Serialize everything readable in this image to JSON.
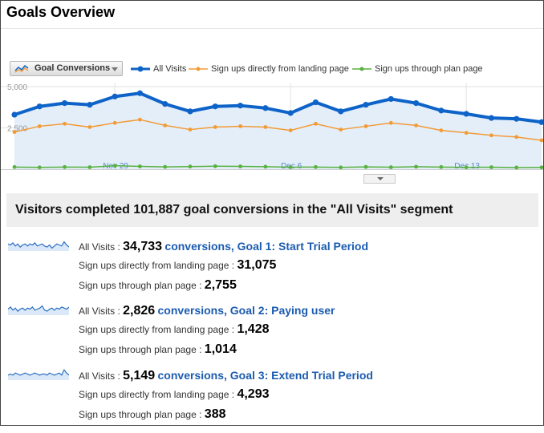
{
  "page": {
    "title": "Goals Overview"
  },
  "toolbar": {
    "metric_select": "Goal Conversions",
    "legend": [
      {
        "label": "All Visits",
        "color": "#0e63c8"
      },
      {
        "label": "Sign ups directly from landing page",
        "color": "#f29b36"
      },
      {
        "label": "Sign ups through plan page",
        "color": "#58b141"
      }
    ]
  },
  "chart_data": {
    "type": "line",
    "ytick_labels": [
      "5,000",
      "2,500"
    ],
    "ylim": [
      0,
      5000
    ],
    "x_tick_labels": [
      "Nov 29",
      "Dec 6",
      "Dec 13"
    ],
    "x_tick_positions": [
      4,
      11,
      18
    ],
    "grid": true,
    "area_fill_series": "All Visits",
    "series": [
      {
        "name": "All Visits",
        "color": "#0e63c8",
        "values": [
          3300,
          3800,
          4000,
          3900,
          4400,
          4600,
          3950,
          3500,
          3800,
          3850,
          3700,
          3400,
          4050,
          3500,
          3900,
          4250,
          4000,
          3550,
          3350,
          3100,
          3050,
          2850
        ]
      },
      {
        "name": "Sign ups directly from landing page",
        "color": "#f29b36",
        "values": [
          2250,
          2600,
          2750,
          2550,
          2800,
          3000,
          2650,
          2400,
          2550,
          2600,
          2550,
          2350,
          2750,
          2400,
          2600,
          2800,
          2650,
          2350,
          2200,
          2050,
          1950,
          1750
        ]
      },
      {
        "name": "Sign ups through plan page",
        "color": "#58b141",
        "values": [
          130,
          110,
          130,
          120,
          210,
          170,
          140,
          160,
          180,
          170,
          150,
          120,
          130,
          110,
          140,
          120,
          150,
          130,
          110,
          120,
          100,
          110
        ]
      }
    ]
  },
  "summary": {
    "text": "Visitors completed 101,887 goal conversions in the \"All Visits\" segment"
  },
  "goals": [
    {
      "segment_label": "All Visits : ",
      "conversions": "34,733",
      "goal_link": "conversions, Goal 1: Start Trial Period",
      "landing_label": "Sign ups directly from landing page : ",
      "landing_value": "31,075",
      "plan_label": "Sign ups through plan page : ",
      "plan_value": "2,755",
      "spark": [
        6,
        5,
        7,
        4,
        6,
        3,
        5,
        6,
        4,
        6,
        5,
        7,
        4,
        5,
        6,
        4,
        3,
        5,
        2,
        4,
        6,
        5,
        4,
        8,
        5,
        3
      ]
    },
    {
      "segment_label": "All Visits : ",
      "conversions": "2,826",
      "goal_link": "conversions, Goal 2: Paying user",
      "landing_label": "Sign ups directly from landing page : ",
      "landing_value": "1,428",
      "plan_label": "Sign ups through plan page : ",
      "plan_value": "1,014",
      "spark": [
        5,
        7,
        4,
        6,
        3,
        5,
        6,
        4,
        6,
        5,
        7,
        4,
        5,
        6,
        8,
        4,
        3,
        5,
        6,
        4,
        6,
        5,
        7,
        6,
        5,
        7
      ]
    },
    {
      "segment_label": "All Visits : ",
      "conversions": "5,149",
      "goal_link": "conversions, Goal 3: Extend Trial Period",
      "landing_label": "Sign ups directly from landing page : ",
      "landing_value": "4,293",
      "plan_label": "Sign ups through plan page : ",
      "plan_value": "388",
      "spark": [
        4,
        5,
        4,
        6,
        5,
        4,
        5,
        6,
        5,
        4,
        5,
        6,
        5,
        4,
        5,
        5,
        4,
        6,
        5,
        4,
        5,
        6,
        4,
        9,
        6,
        4
      ]
    }
  ]
}
